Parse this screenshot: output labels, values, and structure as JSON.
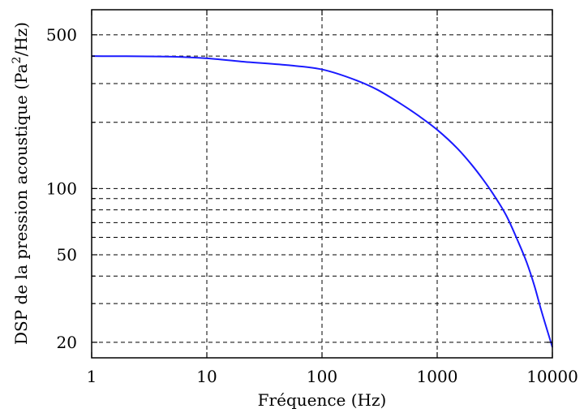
{
  "chart_data": {
    "type": "line",
    "xlabel": "Fréquence (Hz)",
    "ylabel_text": "DSP de la pression acoustique (Pa",
    "ylabel_sup": "2",
    "ylabel_tail": "/Hz)",
    "x_scale": "log",
    "y_scale": "log",
    "xlim": [
      1,
      10000
    ],
    "ylim": [
      17,
      650
    ],
    "x_ticks": [
      {
        "value": 1,
        "label": "1"
      },
      {
        "value": 10,
        "label": "10"
      },
      {
        "value": 100,
        "label": "100"
      },
      {
        "value": 1000,
        "label": "1000"
      },
      {
        "value": 10000,
        "label": "10000"
      }
    ],
    "y_ticks": [
      {
        "value": 20,
        "label": "20"
      },
      {
        "value": 50,
        "label": "50"
      },
      {
        "value": 100,
        "label": "100"
      },
      {
        "value": 500,
        "label": "500"
      }
    ],
    "y_grid_minor": [
      30,
      40,
      60,
      70,
      80,
      90,
      200,
      300,
      400
    ],
    "grid": true,
    "color": "#1a1aff",
    "series": [
      {
        "x": [
          1,
          2,
          5,
          10,
          20,
          50,
          100,
          200,
          300,
          500,
          700,
          1000,
          1500,
          2000,
          2500,
          3000,
          4000,
          5000,
          6000,
          7000,
          8000,
          10000
        ],
        "values": [
          400,
          399.6,
          397.6,
          391,
          378,
          364,
          348,
          310,
          282,
          240,
          213,
          185,
          152,
          128,
          110,
          96,
          75,
          58,
          46,
          36,
          28,
          19
        ]
      }
    ]
  }
}
